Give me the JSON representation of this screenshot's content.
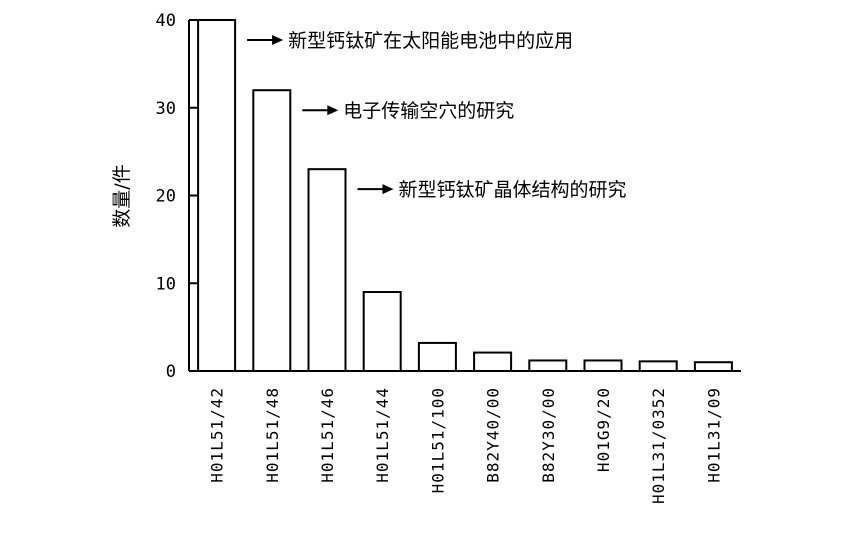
{
  "chart_data": {
    "type": "bar",
    "categories": [
      "H01L51/42",
      "H01L51/48",
      "H01L51/46",
      "H01L51/44",
      "H01L51/100",
      "B82Y40/00",
      "B82Y30/00",
      "H01G9/20",
      "H01L31/0352",
      "H01L31/09"
    ],
    "values": [
      40,
      32,
      23,
      9,
      3.2,
      2.1,
      1.2,
      1.2,
      1.1,
      1.0
    ],
    "ylabel": "数量/件",
    "ylim": [
      0,
      40
    ],
    "yticks": [
      "0",
      "10",
      "20",
      "30",
      "40"
    ],
    "grid": false,
    "annotations": [
      {
        "category_index": 0,
        "text": "新型钙钛矿在太阳能电池中的应用"
      },
      {
        "category_index": 1,
        "text": "电子传输空穴的研究"
      },
      {
        "category_index": 2,
        "text": "新型钙钛矿晶体结构的研究"
      }
    ]
  }
}
